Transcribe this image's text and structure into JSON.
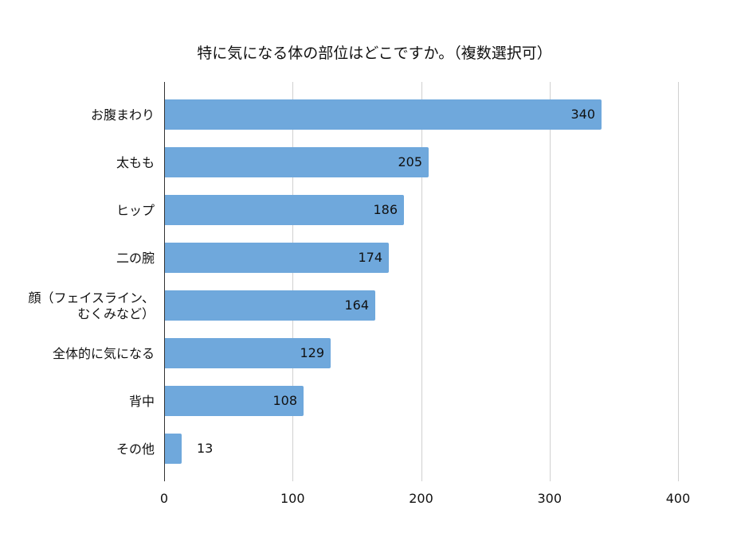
{
  "chart_data": {
    "type": "bar",
    "orientation": "horizontal",
    "title": "特に気になる体の部位はどこですか。（複数選択可）",
    "categories": [
      "お腹まわり",
      "太もも",
      "ヒップ",
      "二の腕",
      "顔（フェイスライン、むくみなど）",
      "全体的に気になる",
      "背中",
      "その他"
    ],
    "category_lines": [
      [
        "お腹まわり"
      ],
      [
        "太もも"
      ],
      [
        "ヒップ"
      ],
      [
        "二の腕"
      ],
      [
        "顔（フェイスライン、",
        "むくみなど）"
      ],
      [
        "全体的に気になる"
      ],
      [
        "背中"
      ],
      [
        "その他"
      ]
    ],
    "values": [
      340,
      205,
      186,
      174,
      164,
      129,
      108,
      13
    ],
    "xlabel": "",
    "ylabel": "",
    "xlim": [
      0,
      400
    ],
    "xticks": [
      "0",
      "100",
      "200",
      "300",
      "400"
    ],
    "grid": true,
    "legend": null,
    "data_labels": true,
    "bar_color": "#6fa8dc"
  }
}
